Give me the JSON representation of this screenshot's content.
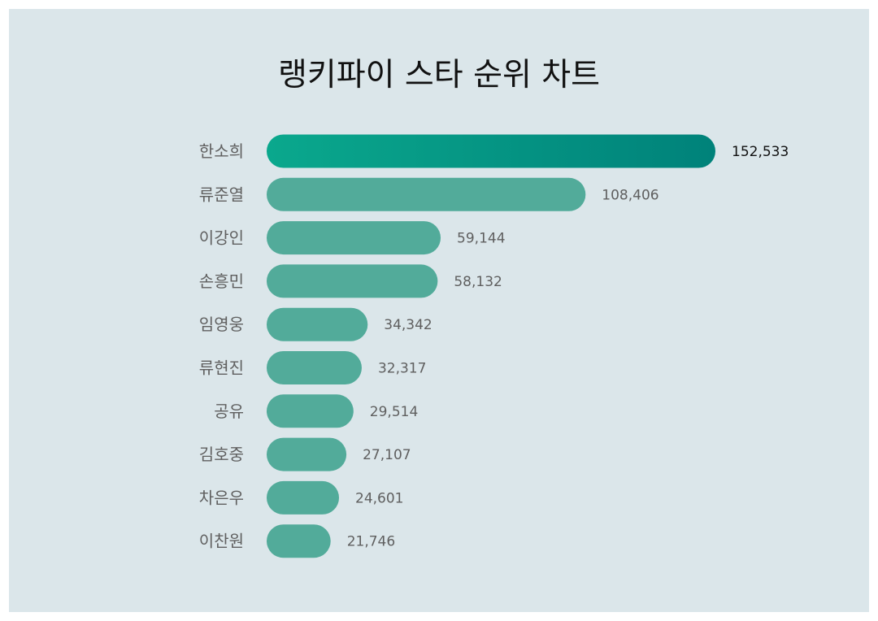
{
  "title": "랭키파이 스타 순위 차트",
  "colors": {
    "background": "#dbe6ea",
    "bar": "#52ab9a",
    "top_bar_start": "#0aa88d",
    "top_bar_end": "#00827a",
    "label": "#5f5f5f",
    "top_value": "#111111"
  },
  "chart_data": {
    "type": "bar",
    "orientation": "horizontal",
    "title": "랭키파이 스타 순위 차트",
    "categories": [
      "한소희",
      "류준열",
      "이강인",
      "손흥민",
      "임영웅",
      "류현진",
      "공유",
      "김호중",
      "차은우",
      "이찬원"
    ],
    "values": [
      152533,
      108406,
      59144,
      58132,
      34342,
      32317,
      29514,
      27107,
      24601,
      21746
    ],
    "value_labels": [
      "152,533",
      "108,406",
      "59,144",
      "58,132",
      "34,342",
      "32,317",
      "29,514",
      "27,107",
      "24,601",
      "21,746"
    ],
    "highlight_index": 0,
    "grid": false,
    "legend": "none"
  }
}
